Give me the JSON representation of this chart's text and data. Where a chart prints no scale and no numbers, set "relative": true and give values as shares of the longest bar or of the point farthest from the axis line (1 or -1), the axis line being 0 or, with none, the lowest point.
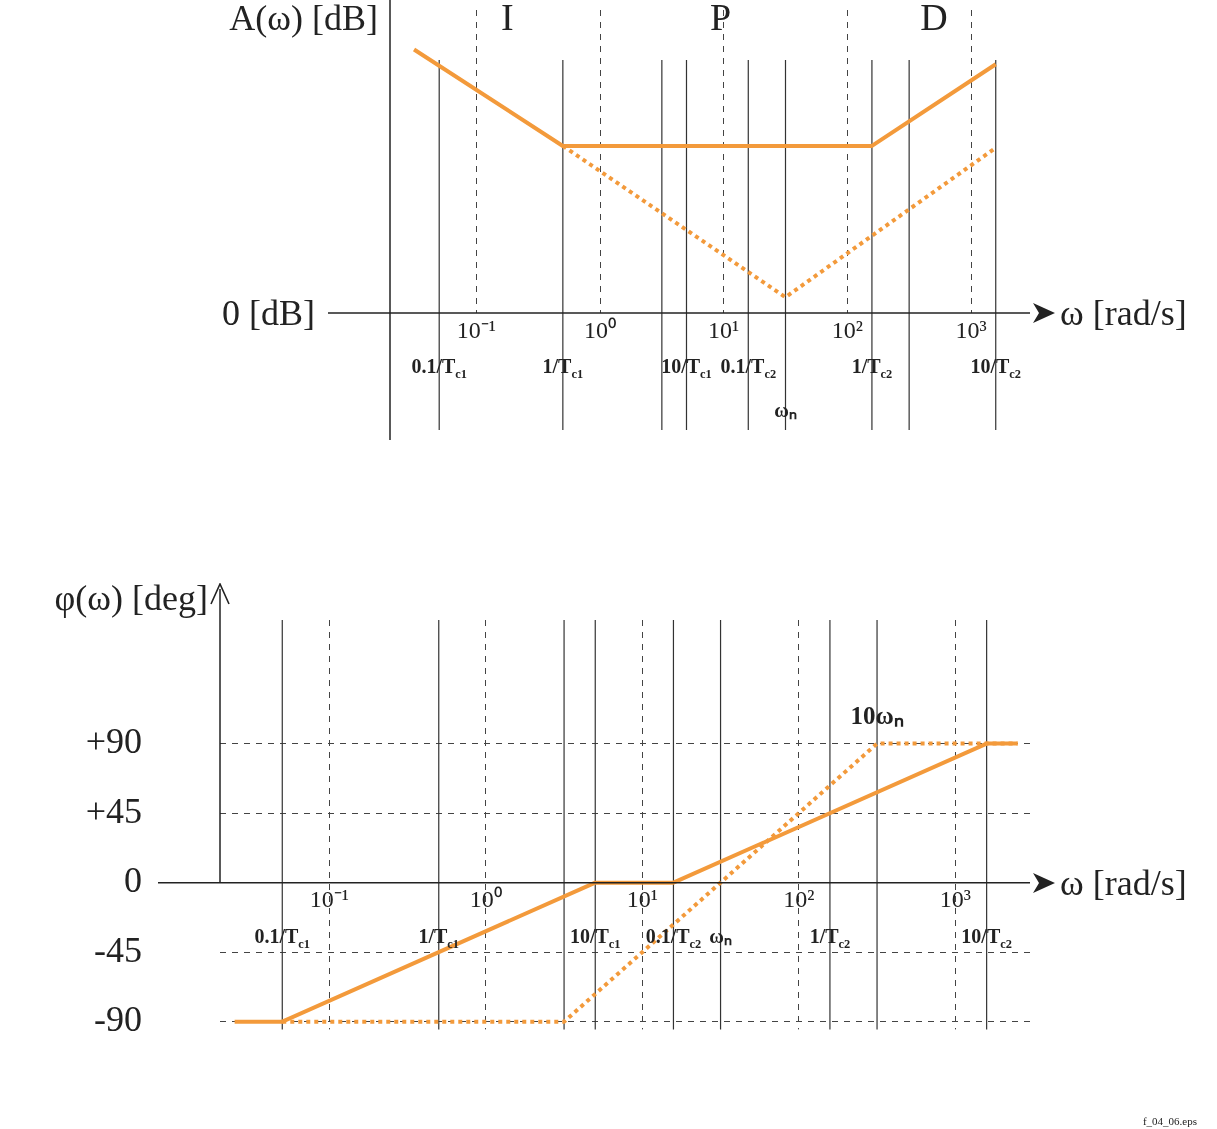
{
  "chart_data": [
    {
      "type": "line",
      "relative": true,
      "ylabel": "A(ω) [dB]",
      "xlabel": "ω [rad/s]",
      "log": "x",
      "xlim": [
        0.02,
        3000
      ],
      "xticks": [
        {
          "value": 0.1,
          "label": "10⁻¹"
        },
        {
          "value": 1,
          "label": "10⁰"
        },
        {
          "value": 10,
          "label": "10¹"
        },
        {
          "value": 100,
          "label": "10²"
        },
        {
          "value": 1000,
          "label": "10³"
        }
      ],
      "grid": "x",
      "legend": false,
      "marker": "none",
      "series": [
        {
          "color": "#f39a3b",
          "line_style": "solid",
          "x": [
            0.0313,
            0.5,
            158,
            1585
          ],
          "values": [
            1,
            0.634,
            0.634,
            0.944
          ]
        },
        {
          "color": "#f39a3b",
          "line_style": "dotted",
          "x": [
            0.5,
            31.6,
            1585
          ],
          "values": [
            0.634,
            0.06,
            0.627
          ]
        }
      ],
      "ref_lines": [
        {
          "axis": "x",
          "value": 0.05,
          "label": "0.1/T$_{c1}$"
        },
        {
          "axis": "x",
          "value": 0.5,
          "label": "1/T$_{c1}$"
        },
        {
          "axis": "x",
          "value": 3.16
        },
        {
          "axis": "x",
          "value": 5,
          "label": "10/T$_{c1}$"
        },
        {
          "axis": "x",
          "value": 15.8,
          "label": "0.1/T$_{c2}$"
        },
        {
          "axis": "x",
          "value": 31.6,
          "label": "ωₙ"
        },
        {
          "axis": "x",
          "value": 158,
          "label": "1/T$_{c2}$"
        },
        {
          "axis": "x",
          "value": 316
        },
        {
          "axis": "x",
          "value": 1585,
          "label": "10/T$_{c2}$"
        }
      ],
      "annotations": [
        "I",
        "P",
        "D",
        "0 [dB]"
      ]
    },
    {
      "type": "line",
      "ylabel": "φ(ω) [deg]",
      "xlabel": "ω [rad/s]",
      "log": "x",
      "xlim": [
        0.02,
        3000
      ],
      "ylim": [
        -95,
        170
      ],
      "xticks": [
        {
          "value": 0.1,
          "label": "10⁻¹"
        },
        {
          "value": 1,
          "label": "10⁰"
        },
        {
          "value": 10,
          "label": "10¹"
        },
        {
          "value": 100,
          "label": "10²"
        },
        {
          "value": 1000,
          "label": "10³"
        }
      ],
      "yticks": [
        {
          "value": 90,
          "label": "+90"
        },
        {
          "value": 45,
          "label": "+45"
        },
        0,
        -45,
        -90
      ],
      "grid": true,
      "legend": false,
      "marker": "none",
      "series": [
        {
          "color": "#f39a3b",
          "line_style": "solid",
          "x": [
            0.0248,
            0.05,
            5,
            15.8,
            1585,
            2500
          ],
          "values": [
            -90,
            -90,
            0,
            0,
            90,
            90
          ]
        },
        {
          "color": "#f39a3b",
          "line_style": "dotted",
          "x": [
            0.05,
            3.16,
            316,
            2500
          ],
          "values": [
            -90,
            -90,
            90,
            90
          ]
        }
      ],
      "ref_lines": [
        {
          "axis": "x",
          "value": 0.05,
          "label": "0.1/T$_{c1}$"
        },
        {
          "axis": "x",
          "value": 0.5,
          "label": "1/T$_{c1}$"
        },
        {
          "axis": "x",
          "value": 3.16
        },
        {
          "axis": "x",
          "value": 5,
          "label": "10/T$_{c1}$"
        },
        {
          "axis": "x",
          "value": 15.8,
          "label": "0.1/T$_{c2}$"
        },
        {
          "axis": "x",
          "value": 31.6,
          "label": "ωₙ"
        },
        {
          "axis": "x",
          "value": 158,
          "label": "1/T$_{c2}$"
        },
        {
          "axis": "x",
          "value": 316
        },
        {
          "axis": "x",
          "value": 1585,
          "label": "10/T$_{c2}$"
        }
      ],
      "annotations": [
        {
          "text": "10ωₙ",
          "x": 316,
          "y": 90
        },
        "f_04_06.eps"
      ]
    }
  ]
}
